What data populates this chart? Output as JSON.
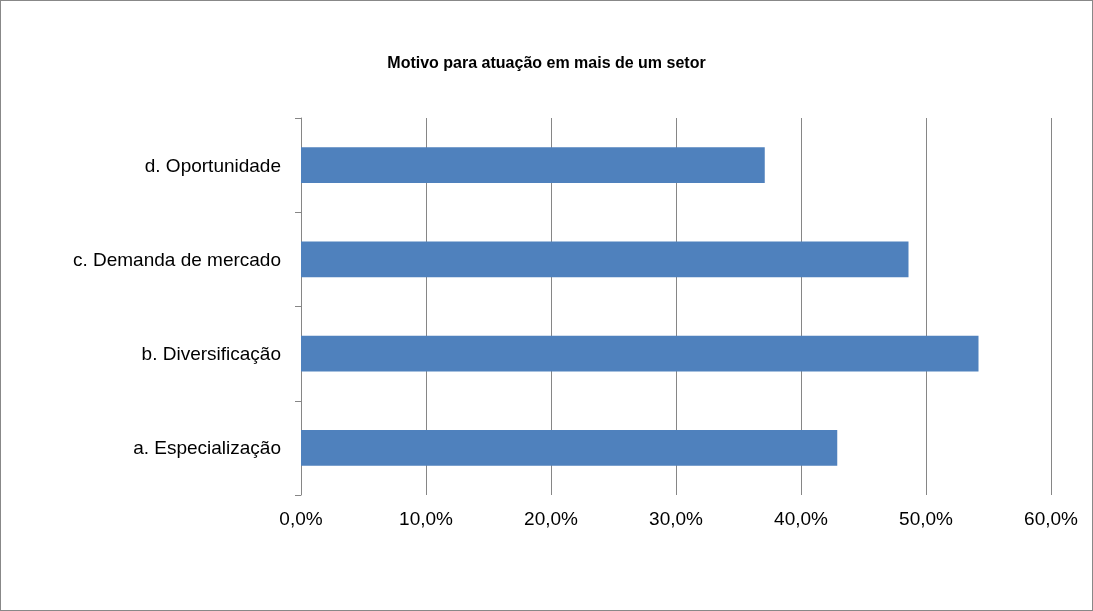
{
  "chart_data": {
    "type": "bar",
    "orientation": "horizontal",
    "title": "Motivo para atuação em mais de um setor",
    "categories": [
      "d. Oportunidade",
      "c. Demanda de mercado",
      "b. Diversificação",
      "a. Especialização"
    ],
    "values": [
      37.1,
      48.6,
      54.2,
      42.9
    ],
    "color": "#4f81bd",
    "xlim": [
      0,
      60
    ],
    "xticks": [
      {
        "value": 0,
        "label": "0,0%"
      },
      {
        "value": 10,
        "label": "10,0%"
      },
      {
        "value": 20,
        "label": "20,0%"
      },
      {
        "value": 30,
        "label": "30,0%"
      },
      {
        "value": 40,
        "label": "40,0%"
      },
      {
        "value": 50,
        "label": "50,0%"
      },
      {
        "value": 60,
        "label": "60,0%"
      }
    ],
    "grid": "x"
  }
}
